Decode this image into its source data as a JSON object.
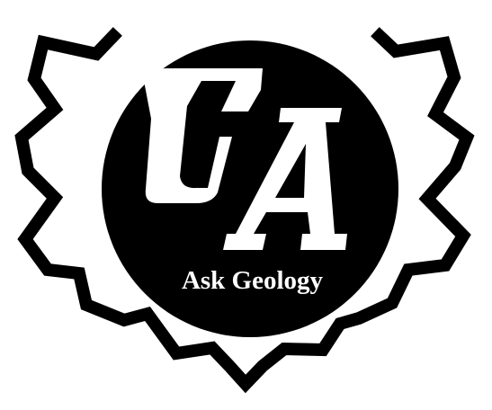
{
  "logo": {
    "monogram": "GA",
    "tagline": "Ask Geology"
  },
  "colors": {
    "foreground": "#000000",
    "background": "#ffffff",
    "inner_text": "#ffffff"
  },
  "icons": {
    "gear": "gear-icon",
    "monogram": "ga-monogram-icon"
  }
}
